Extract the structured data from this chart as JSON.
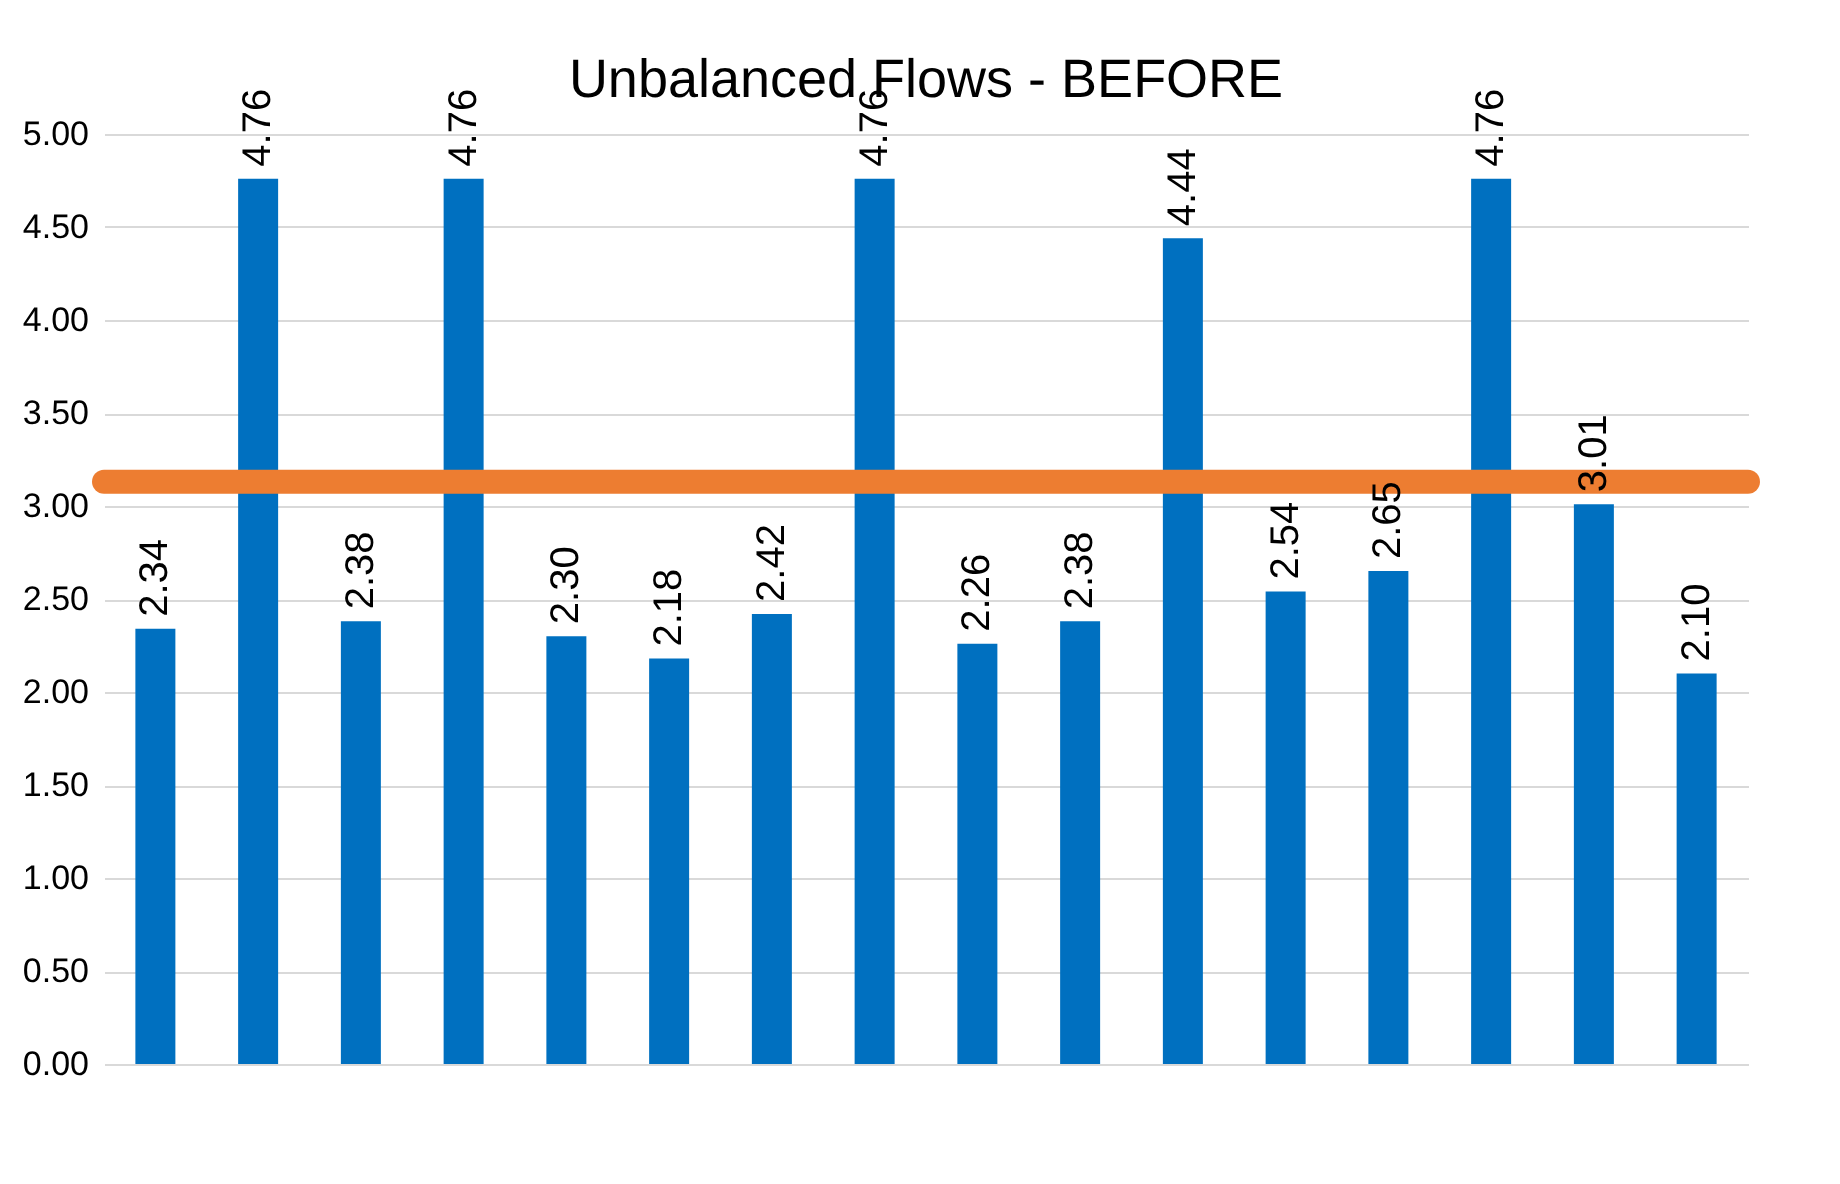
{
  "chart_data": {
    "type": "bar",
    "title": "Unbalanced Flows - BEFORE",
    "categories": [
      null,
      null,
      null,
      null,
      null,
      null,
      null,
      null,
      null,
      null,
      null,
      null,
      null,
      null,
      null,
      null
    ],
    "values": [
      2.34,
      4.76,
      2.38,
      4.76,
      2.3,
      2.18,
      2.42,
      4.76,
      2.26,
      2.38,
      4.44,
      2.54,
      2.65,
      4.76,
      3.01,
      2.1
    ],
    "value_labels": [
      "2.34",
      "4.76",
      "2.38",
      "4.76",
      "2.30",
      "2.18",
      "2.42",
      "4.76",
      "2.26",
      "2.38",
      "4.44",
      "2.54",
      "2.65",
      "4.76",
      "3.01",
      "2.10"
    ],
    "color": "#0070c0",
    "ylim": [
      0,
      5
    ],
    "yticks": [
      {
        "value": 0,
        "label": "0.00"
      },
      {
        "value": 0.5,
        "label": "0.50"
      },
      {
        "value": 1,
        "label": "1.00"
      },
      {
        "value": 1.5,
        "label": "1.50"
      },
      {
        "value": 2,
        "label": "2.00"
      },
      {
        "value": 2.5,
        "label": "2.50"
      },
      {
        "value": 3,
        "label": "3.00"
      },
      {
        "value": 3.5,
        "label": "3.50"
      },
      {
        "value": 4,
        "label": "4.00"
      },
      {
        "value": 4.5,
        "label": "4.50"
      },
      {
        "value": 5,
        "label": "5.00"
      }
    ],
    "ref_lines": [
      {
        "axis": "y",
        "value": 3.13,
        "color": "#ed7d31"
      }
    ],
    "grid": "y",
    "tick_labels": "y"
  }
}
